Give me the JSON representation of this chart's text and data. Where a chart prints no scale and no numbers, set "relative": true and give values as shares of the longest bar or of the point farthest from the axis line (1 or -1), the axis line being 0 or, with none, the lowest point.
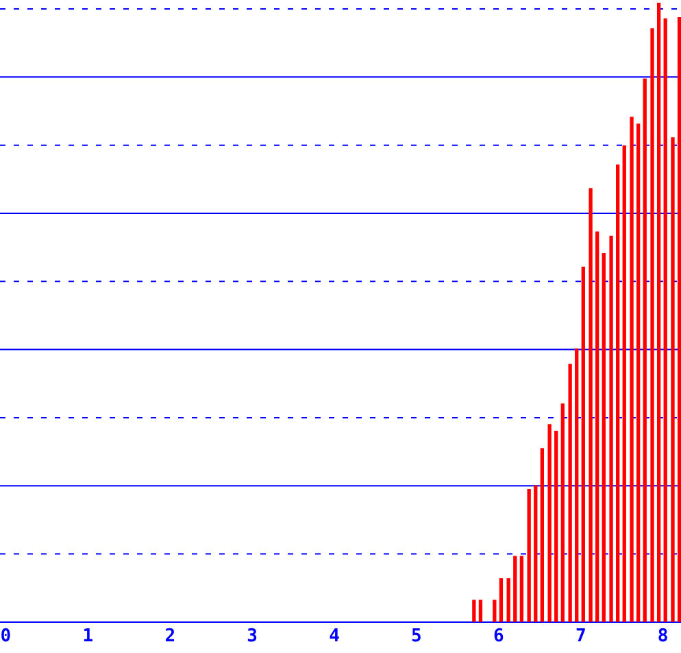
{
  "chart_data": {
    "type": "bar",
    "relative": true,
    "color": "#ff0000",
    "x": [
      5.7,
      5.78,
      5.95,
      6.03,
      6.12,
      6.2,
      6.28,
      6.37,
      6.45,
      6.53,
      6.62,
      6.7,
      6.78,
      6.87,
      6.95,
      7.03,
      7.12,
      7.2,
      7.28,
      7.37,
      7.45,
      7.53,
      7.62,
      7.7,
      7.78,
      7.87,
      7.95,
      8.03,
      8.12,
      8.2
    ],
    "values": [
      0.035,
      0.035,
      0.035,
      0.07,
      0.07,
      0.106,
      0.106,
      0.214,
      0.22,
      0.28,
      0.319,
      0.308,
      0.352,
      0.416,
      0.441,
      0.573,
      0.7,
      0.63,
      0.595,
      0.623,
      0.738,
      0.769,
      0.815,
      0.804,
      0.877,
      0.958,
      1,
      0.974,
      0.782,
      0.976
    ],
    "xlim": [
      -0.07,
      8.22
    ],
    "xticks": [
      0,
      1,
      2,
      3,
      4,
      5,
      6,
      7,
      8
    ],
    "ref_lines": [
      {
        "axis": "y",
        "value": 0.11,
        "color": "#0000ff",
        "line_style": "dashed"
      },
      {
        "axis": "y",
        "value": 0.22,
        "color": "#0000ff",
        "line_style": "solid"
      },
      {
        "axis": "y",
        "value": 0.33,
        "color": "#0000ff",
        "line_style": "dashed"
      },
      {
        "axis": "y",
        "value": 0.44,
        "color": "#0000ff",
        "line_style": "solid"
      },
      {
        "axis": "y",
        "value": 0.55,
        "color": "#0000ff",
        "line_style": "dashed"
      },
      {
        "axis": "y",
        "value": 0.66,
        "color": "#0000ff",
        "line_style": "solid"
      },
      {
        "axis": "y",
        "value": 0.77,
        "color": "#0000ff",
        "line_style": "dashed"
      },
      {
        "axis": "y",
        "value": 0.88,
        "color": "#0000ff",
        "line_style": "solid"
      },
      {
        "axis": "y",
        "value": 0.99,
        "color": "#0000ff",
        "line_style": "dashed"
      }
    ]
  }
}
